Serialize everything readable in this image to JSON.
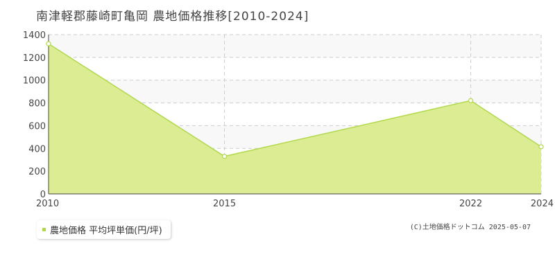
{
  "chart_data": {
    "type": "area",
    "title": "南津軽郡藤崎町亀岡 農地価格推移[2010-2024]",
    "x": [
      2010,
      2015,
      2022,
      2024
    ],
    "x_tick_labels": [
      "2010",
      "2015",
      "2022",
      "2024"
    ],
    "xlim": [
      2010,
      2024
    ],
    "ylim": [
      0,
      1400
    ],
    "y_ticks": [
      0,
      200,
      400,
      600,
      800,
      1000,
      1200,
      1400
    ],
    "y_tick_labels": [
      "0",
      "200",
      "400",
      "600",
      "800",
      "1000",
      "1200",
      "1400"
    ],
    "series": [
      {
        "name": "農地価格 平均坪単価(円/坪)",
        "values": [
          1320,
          330,
          820,
          415
        ]
      }
    ],
    "grid": true,
    "legend_position": "bottom-left",
    "colors": {
      "fill": "#dbec92",
      "line": "#b2d84c",
      "marker_fill": "#ffffff",
      "grid": "#cccccc",
      "plot_band": "#f8f8f8",
      "axis": "#444444"
    }
  },
  "legend": {
    "label": "農地価格 平均坪単価(円/坪)"
  },
  "footer": {
    "copyright": "(C)土地価格ドットコム 2025-05-07"
  }
}
